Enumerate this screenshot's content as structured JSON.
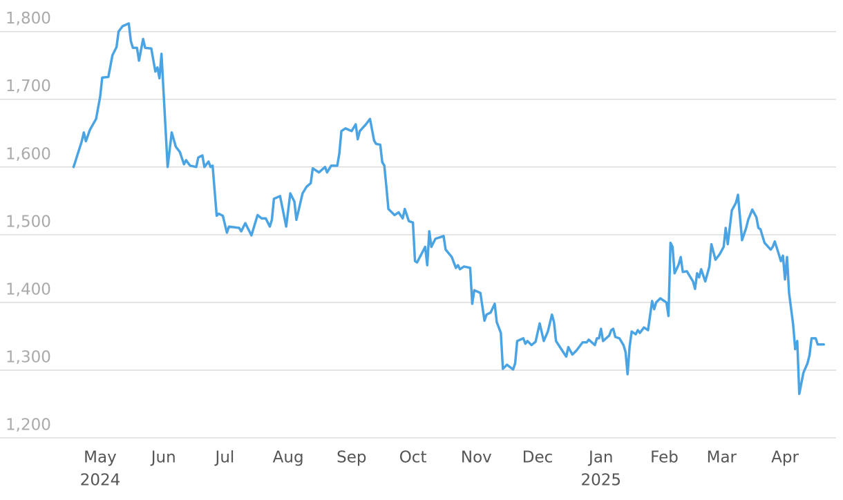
{
  "chart_data": {
    "type": "line",
    "color": "#4aa3e2",
    "grid": true,
    "xlim": [
      "2024-03-13",
      "2025-04-26"
    ],
    "ylim": [
      1200,
      1816
    ],
    "yticks": [
      {
        "value": 1200,
        "label": "1,200"
      },
      {
        "value": 1300,
        "label": "1,300"
      },
      {
        "value": 1400,
        "label": "1,400"
      },
      {
        "value": 1500,
        "label": "1,500"
      },
      {
        "value": 1600,
        "label": "1,600"
      },
      {
        "value": 1700,
        "label": "1,700"
      },
      {
        "value": 1800,
        "label": "1,800"
      }
    ],
    "xticks": [
      {
        "value": "2024-05-01",
        "label": "May"
      },
      {
        "value": "2024-06-01",
        "label": "Jun"
      },
      {
        "value": "2024-07-01",
        "label": "Jul"
      },
      {
        "value": "2024-08-01",
        "label": "Aug"
      },
      {
        "value": "2024-09-01",
        "label": "Sep"
      },
      {
        "value": "2024-10-01",
        "label": "Oct"
      },
      {
        "value": "2024-11-01",
        "label": "Nov"
      },
      {
        "value": "2024-12-01",
        "label": "Dec"
      },
      {
        "value": "2025-01-01",
        "label": "Jan"
      },
      {
        "value": "2025-02-01",
        "label": "Feb"
      },
      {
        "value": "2025-03-01",
        "label": "Mar"
      },
      {
        "value": "2025-04-01",
        "label": "Apr"
      }
    ],
    "xtick_years": [
      {
        "value": "2024-05-01",
        "label": "2024"
      },
      {
        "value": "2025-01-01",
        "label": "2025"
      }
    ],
    "x": [
      "2024-04-18",
      "2024-04-22",
      "2024-04-23",
      "2024-04-24",
      "2024-04-26",
      "2024-04-29",
      "2024-05-01",
      "2024-05-02",
      "2024-05-05",
      "2024-05-07",
      "2024-05-09",
      "2024-05-10",
      "2024-05-12",
      "2024-05-15",
      "2024-05-16",
      "2024-05-17",
      "2024-05-19",
      "2024-05-20",
      "2024-05-22",
      "2024-05-23",
      "2024-05-26",
      "2024-05-28",
      "2024-05-29",
      "2024-05-30",
      "2024-05-31",
      "2024-06-03",
      "2024-06-05",
      "2024-06-07",
      "2024-06-09",
      "2024-06-11",
      "2024-06-12",
      "2024-06-14",
      "2024-06-17",
      "2024-06-18",
      "2024-06-20",
      "2024-06-21",
      "2024-06-23",
      "2024-06-24",
      "2024-06-25",
      "2024-06-27",
      "2024-06-28",
      "2024-06-30",
      "2024-07-02",
      "2024-07-03",
      "2024-07-08",
      "2024-07-09",
      "2024-07-11",
      "2024-07-14",
      "2024-07-17",
      "2024-07-19",
      "2024-07-21",
      "2024-07-23",
      "2024-07-24",
      "2024-07-25",
      "2024-07-28",
      "2024-07-31",
      "2024-08-02",
      "2024-08-04",
      "2024-08-05",
      "2024-08-08",
      "2024-08-10",
      "2024-08-12",
      "2024-08-13",
      "2024-08-16",
      "2024-08-19",
      "2024-08-20",
      "2024-08-22",
      "2024-08-25",
      "2024-08-26",
      "2024-08-27",
      "2024-08-29",
      "2024-09-01",
      "2024-09-03",
      "2024-09-04",
      "2024-09-05",
      "2024-09-08",
      "2024-09-10",
      "2024-09-12",
      "2024-09-13",
      "2024-09-15",
      "2024-09-16",
      "2024-09-17",
      "2024-09-18",
      "2024-09-19",
      "2024-09-22",
      "2024-09-24",
      "2024-09-26",
      "2024-09-27",
      "2024-09-29",
      "2024-10-01",
      "2024-10-02",
      "2024-10-03",
      "2024-10-07",
      "2024-10-08",
      "2024-10-09",
      "2024-10-10",
      "2024-10-12",
      "2024-10-16",
      "2024-10-17",
      "2024-10-20",
      "2024-10-22",
      "2024-10-23",
      "2024-10-24",
      "2024-10-26",
      "2024-10-29",
      "2024-10-30",
      "2024-10-31",
      "2024-11-03",
      "2024-11-05",
      "2024-11-06",
      "2024-11-08",
      "2024-11-10",
      "2024-11-11",
      "2024-11-13",
      "2024-11-14",
      "2024-11-16",
      "2024-11-19",
      "2024-11-20",
      "2024-11-21",
      "2024-11-24",
      "2024-11-25",
      "2024-11-26",
      "2024-11-28",
      "2024-11-30",
      "2024-12-02",
      "2024-12-04",
      "2024-12-06",
      "2024-12-08",
      "2024-12-09",
      "2024-12-10",
      "2024-12-13",
      "2024-12-15",
      "2024-12-16",
      "2024-12-18",
      "2024-12-20",
      "2024-12-23",
      "2024-12-25",
      "2024-12-26",
      "2024-12-29",
      "2024-12-30",
      "2024-12-31",
      "2025-01-01",
      "2025-01-02",
      "2025-01-05",
      "2025-01-06",
      "2025-01-07",
      "2025-01-08",
      "2025-01-10",
      "2025-01-12",
      "2025-01-13",
      "2025-01-14",
      "2025-01-15",
      "2025-01-16",
      "2025-01-18",
      "2025-01-19",
      "2025-01-20",
      "2025-01-22",
      "2025-01-24",
      "2025-01-26",
      "2025-01-27",
      "2025-01-28",
      "2025-01-30",
      "2025-02-02",
      "2025-02-03",
      "2025-02-04",
      "2025-02-05",
      "2025-02-06",
      "2025-02-08",
      "2025-02-09",
      "2025-02-10",
      "2025-02-12",
      "2025-02-15",
      "2025-02-16",
      "2025-02-17",
      "2025-02-18",
      "2025-02-19",
      "2025-02-21",
      "2025-02-23",
      "2025-02-24",
      "2025-02-26",
      "2025-02-28",
      "2025-03-02",
      "2025-03-03",
      "2025-03-04",
      "2025-03-06",
      "2025-03-08",
      "2025-03-09",
      "2025-03-11",
      "2025-03-13",
      "2025-03-14",
      "2025-03-16",
      "2025-03-18",
      "2025-03-19",
      "2025-03-20",
      "2025-03-22",
      "2025-03-25",
      "2025-03-26",
      "2025-03-27",
      "2025-03-29",
      "2025-03-30",
      "2025-03-31",
      "2025-04-01",
      "2025-04-02",
      "2025-04-03",
      "2025-04-05",
      "2025-04-06",
      "2025-04-07",
      "2025-04-08",
      "2025-04-10",
      "2025-04-12",
      "2025-04-13",
      "2025-04-14",
      "2025-04-16",
      "2025-04-17",
      "2025-04-20"
    ],
    "values": [
      1600,
      1638,
      1651,
      1638,
      1655,
      1671,
      1704,
      1732,
      1733,
      1765,
      1777,
      1800,
      1808,
      1812,
      1786,
      1776,
      1776,
      1757,
      1789,
      1776,
      1775,
      1741,
      1747,
      1731,
      1767,
      1600,
      1651,
      1630,
      1622,
      1604,
      1610,
      1602,
      1600,
      1614,
      1617,
      1600,
      1608,
      1600,
      1602,
      1528,
      1531,
      1528,
      1503,
      1512,
      1510,
      1505,
      1517,
      1499,
      1529,
      1524,
      1524,
      1512,
      1522,
      1553,
      1557,
      1512,
      1561,
      1549,
      1522,
      1561,
      1571,
      1576,
      1598,
      1592,
      1600,
      1592,
      1602,
      1602,
      1620,
      1653,
      1657,
      1653,
      1663,
      1641,
      1653,
      1663,
      1671,
      1639,
      1634,
      1633,
      1607,
      1602,
      1571,
      1538,
      1529,
      1533,
      1524,
      1538,
      1520,
      1518,
      1461,
      1459,
      1482,
      1455,
      1505,
      1482,
      1494,
      1498,
      1478,
      1467,
      1451,
      1455,
      1449,
      1453,
      1451,
      1398,
      1418,
      1414,
      1373,
      1382,
      1385,
      1398,
      1371,
      1355,
      1302,
      1308,
      1301,
      1310,
      1343,
      1347,
      1339,
      1343,
      1337,
      1342,
      1369,
      1343,
      1357,
      1382,
      1371,
      1343,
      1329,
      1320,
      1334,
      1323,
      1329,
      1341,
      1341,
      1345,
      1337,
      1347,
      1347,
      1361,
      1343,
      1351,
      1359,
      1361,
      1349,
      1347,
      1337,
      1327,
      1294,
      1335,
      1357,
      1353,
      1359,
      1355,
      1363,
      1359,
      1402,
      1390,
      1400,
      1406,
      1400,
      1380,
      1488,
      1482,
      1443,
      1456,
      1467,
      1445,
      1446,
      1431,
      1420,
      1443,
      1437,
      1449,
      1431,
      1453,
      1486,
      1463,
      1471,
      1482,
      1510,
      1486,
      1536,
      1547,
      1559,
      1492,
      1510,
      1522,
      1537,
      1526,
      1510,
      1508,
      1488,
      1478,
      1482,
      1490,
      1471,
      1461,
      1469,
      1434,
      1467,
      1414,
      1367,
      1331,
      1343,
      1265,
      1296,
      1310,
      1322,
      1347,
      1347,
      1338,
      1338
    ]
  }
}
